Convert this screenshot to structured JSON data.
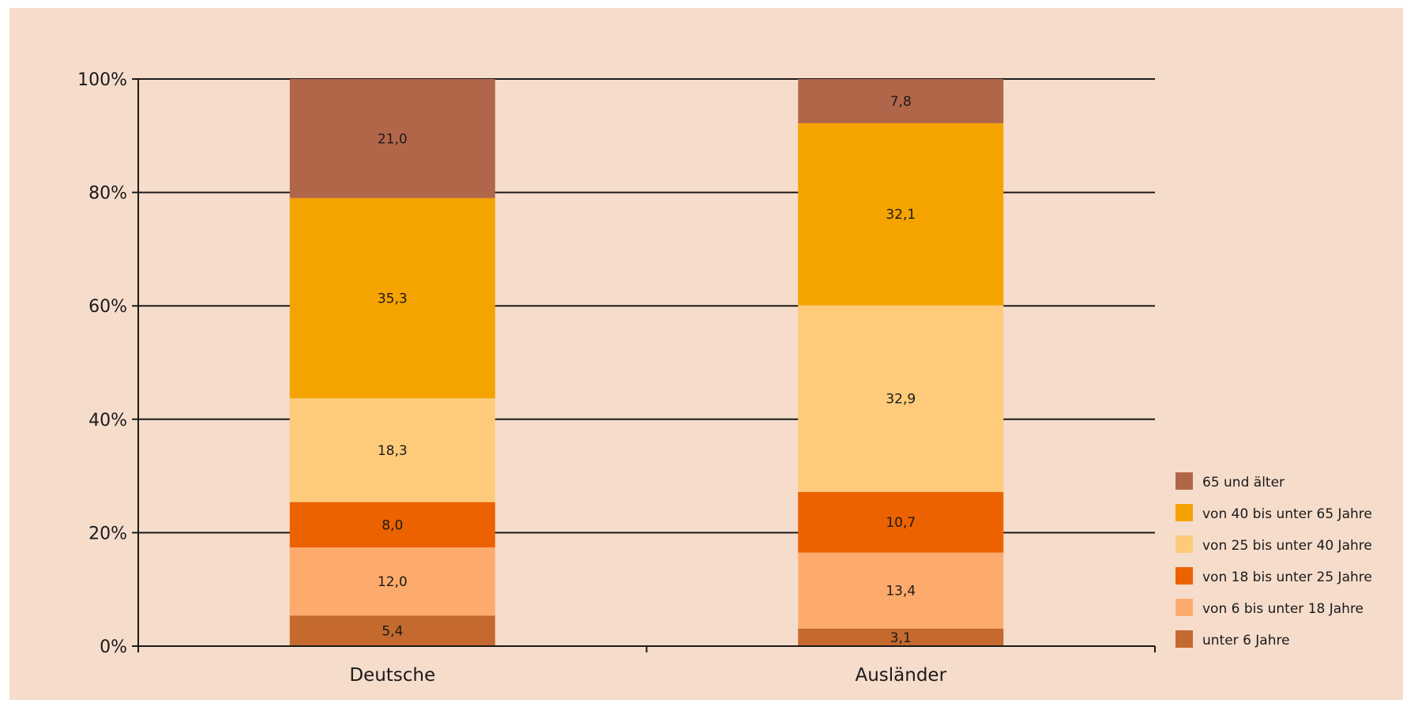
{
  "chart_data": {
    "type": "bar",
    "stacked": true,
    "categories": [
      "Deutsche",
      "Ausländer"
    ],
    "series": [
      {
        "name": "unter 6 Jahre",
        "values": [
          5.4,
          3.1
        ],
        "labels": [
          "5,4",
          "3,1"
        ],
        "color": "#c46a2f"
      },
      {
        "name": "von 6 bis unter 18 Jahre",
        "values": [
          12.0,
          13.4
        ],
        "labels": [
          "12,0",
          "13,4"
        ],
        "color": "#fdab6c"
      },
      {
        "name": "von 18 bis unter 25 Jahre",
        "values": [
          8.0,
          10.7
        ],
        "labels": [
          "8,0",
          "10,7"
        ],
        "color": "#ec6200"
      },
      {
        "name": "von 25 bis unter 40 Jahre",
        "values": [
          18.3,
          32.9
        ],
        "labels": [
          "18,3",
          "32,9"
        ],
        "color": "#fecb7a"
      },
      {
        "name": "von 40 bis unter 65 Jahre",
        "values": [
          35.3,
          32.1
        ],
        "labels": [
          "35,3",
          "32,1"
        ],
        "color": "#f5a300"
      },
      {
        "name": "65 und älter",
        "values": [
          21.0,
          7.8
        ],
        "labels": [
          "21,0",
          "7,8"
        ],
        "color": "#b1664a"
      }
    ],
    "yticks": [
      0,
      20,
      40,
      60,
      80,
      100
    ],
    "ytick_labels": [
      "0%",
      "20%",
      "40%",
      "60%",
      "80%",
      "100%"
    ],
    "ylim": [
      0,
      100
    ],
    "grid": true,
    "legend_position": "bottom-right"
  }
}
